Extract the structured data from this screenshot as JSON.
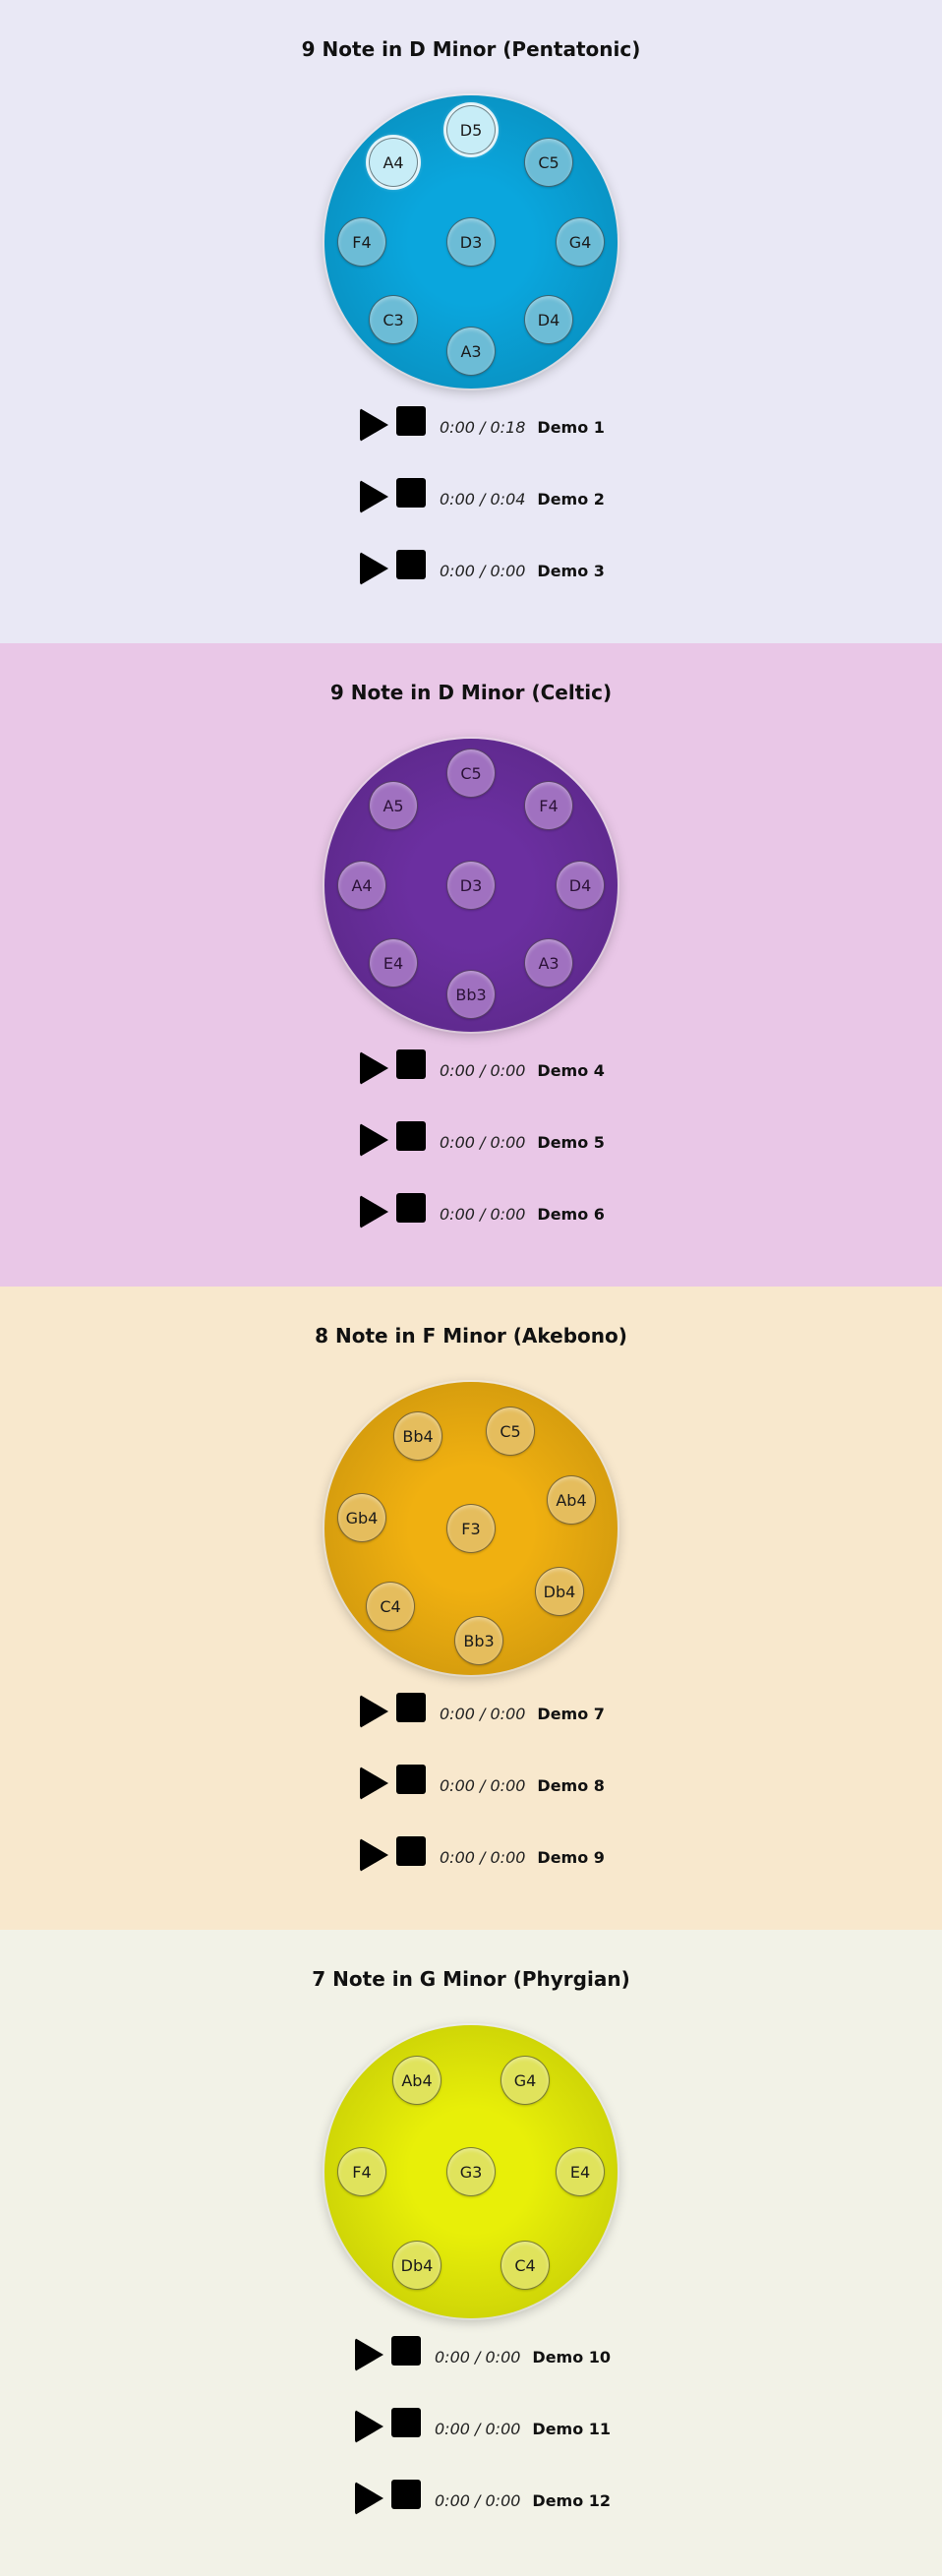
{
  "sections": [
    {
      "title": "9 Note in D Minor (Pentatonic)",
      "background": "#e9e8f5",
      "drum_color": "#0aa6dd",
      "notes": [
        "D5",
        "C5",
        "G4",
        "D4",
        "A3",
        "C3",
        "F4",
        "A4",
        "D3"
      ],
      "players": [
        {
          "time": "0:00 / 0:18",
          "label": "Demo 1"
        },
        {
          "time": "0:00 / 0:04",
          "label": "Demo 2"
        },
        {
          "time": "0:00 / 0:00",
          "label": "Demo 3"
        }
      ]
    },
    {
      "title": "9 Note in D Minor (Celtic)",
      "background": "#e9c7e7",
      "drum_color": "#6b2fa0",
      "notes": [
        "C5",
        "F4",
        "D4",
        "A3",
        "Bb3",
        "E4",
        "A4",
        "A5",
        "D3"
      ],
      "players": [
        {
          "time": "0:00 / 0:00",
          "label": "Demo 4"
        },
        {
          "time": "0:00 / 0:00",
          "label": "Demo 5"
        },
        {
          "time": "0:00 / 0:00",
          "label": "Demo 6"
        }
      ]
    },
    {
      "title": "8 Note in F Minor (Akebono)",
      "background": "#f8e8cd",
      "drum_color": "#f0b010",
      "notes": [
        "C5",
        "Ab4",
        "Db4",
        "Bb3",
        "C4",
        "Gb4",
        "Bb4",
        "F3"
      ],
      "players": [
        {
          "time": "0:00 / 0:00",
          "label": "Demo 7"
        },
        {
          "time": "0:00 / 0:00",
          "label": "Demo 8"
        },
        {
          "time": "0:00 / 0:00",
          "label": "Demo 9"
        }
      ]
    },
    {
      "title": "7 Note in G Minor (Phyrgian)",
      "background": "#f2f2e7",
      "drum_color": "#e8ef08",
      "notes": [
        "G4",
        "E4",
        "C4",
        "Db4",
        "F4",
        "Ab4",
        "G3"
      ],
      "players": [
        {
          "time": "0:00 / 0:00",
          "label": "Demo 10"
        },
        {
          "time": "0:00 / 0:00",
          "label": "Demo 11"
        },
        {
          "time": "0:00 / 0:00",
          "label": "Demo 12"
        }
      ]
    }
  ]
}
